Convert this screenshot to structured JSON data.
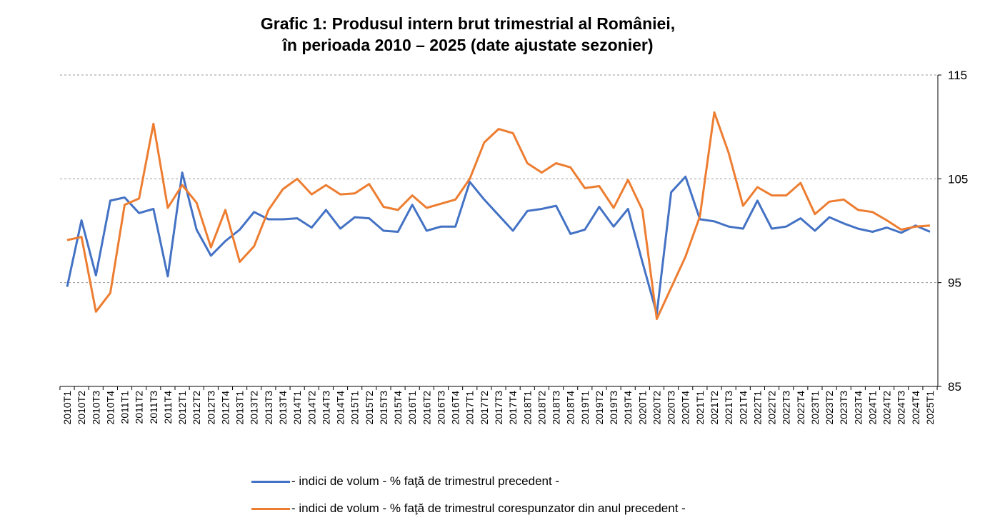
{
  "chart_data": {
    "type": "line",
    "title_line1": "Grafic 1: Produsul intern brut trimestrial al României,",
    "title_line2": "în perioada 2010 – 2025 (date ajustate sezonier)",
    "xlabel": "",
    "ylabel": "",
    "ylim": [
      85,
      115
    ],
    "yticks": [
      85,
      95,
      105,
      115
    ],
    "grid": true,
    "y_axis_side": "right",
    "legend_position": "bottom",
    "categories": [
      "2010T1",
      "2010T2",
      "2010T3",
      "2010T4",
      "2011T1",
      "2011T2",
      "2011T3",
      "2011T4",
      "2012T1",
      "2012T2",
      "2012T3",
      "2012T4",
      "2013T1",
      "2013T2",
      "2013T3",
      "2013T4",
      "2014T1",
      "2014T2",
      "2014T3",
      "2014T4",
      "2015T1",
      "2015T2",
      "2015T3",
      "2015T4",
      "2016T1",
      "2016T2",
      "2016T3",
      "2016T4",
      "2017T1",
      "2017T2",
      "2017T3",
      "2017T4",
      "2018T1",
      "2018T2",
      "2018T3",
      "2018T4",
      "2019T1",
      "2019T2",
      "2019T3",
      "2019T4",
      "2020T1",
      "2020T2",
      "2020T3",
      "2020T4",
      "2021T1",
      "2021T2",
      "2021T3",
      "2021T4",
      "2022T1",
      "2022T2",
      "2022T3",
      "2022T4",
      "2023T1",
      "2023T2",
      "2023T3",
      "2023T4",
      "2024T1",
      "2024T2",
      "2024T3",
      "2024T4",
      "2025T1"
    ],
    "series": [
      {
        "name": "- indici de volum - % faţă de trimestrul precedent -",
        "color": "#4472C4",
        "values": [
          94.6,
          101.0,
          95.7,
          102.9,
          103.2,
          101.7,
          102.1,
          95.6,
          105.6,
          100.1,
          97.6,
          99.0,
          100.1,
          101.8,
          101.1,
          101.1,
          101.2,
          100.3,
          102.0,
          100.2,
          101.3,
          101.2,
          100.0,
          99.9,
          102.5,
          100.0,
          100.4,
          100.4,
          104.7,
          103.0,
          101.5,
          100.0,
          101.9,
          102.1,
          102.4,
          99.7,
          100.1,
          102.3,
          100.4,
          102.1,
          97.0,
          92.0,
          103.7,
          105.2,
          101.1,
          100.9,
          100.4,
          100.2,
          102.9,
          100.2,
          100.4,
          101.2,
          100.0,
          101.3,
          100.7,
          100.2,
          99.9,
          100.3,
          99.8,
          100.5,
          99.9
        ]
      },
      {
        "name": "- indici de volum - % faţă de trimestrul corespunzator din anul precedent -",
        "color": "#ED7D31",
        "values": [
          99.1,
          99.4,
          92.2,
          94.0,
          102.5,
          103.1,
          110.3,
          102.2,
          104.4,
          102.7,
          98.4,
          102.0,
          97.0,
          98.5,
          102.0,
          104.0,
          105.0,
          103.5,
          104.4,
          103.5,
          103.6,
          104.5,
          102.3,
          102.0,
          103.4,
          102.2,
          102.6,
          103.0,
          105.0,
          108.5,
          109.8,
          109.4,
          106.5,
          105.6,
          106.5,
          106.1,
          104.1,
          104.3,
          102.2,
          104.9,
          102.0,
          91.5,
          94.5,
          97.5,
          101.4,
          111.4,
          107.5,
          102.4,
          104.2,
          103.4,
          103.4,
          104.6,
          101.6,
          102.8,
          103.0,
          102.0,
          101.8,
          101.0,
          100.1,
          100.4,
          100.5
        ]
      }
    ]
  }
}
